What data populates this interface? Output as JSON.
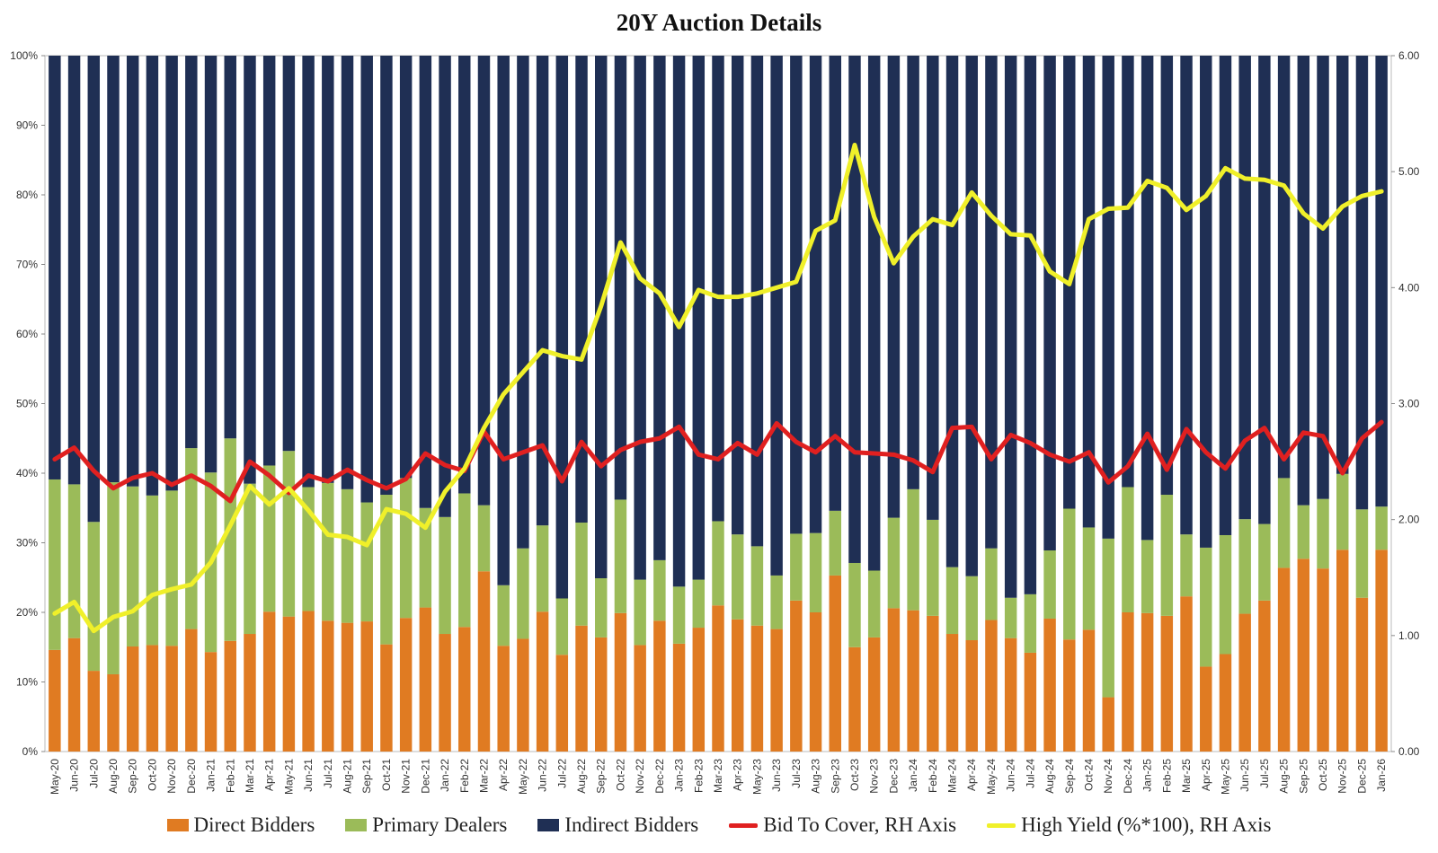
{
  "chart_data": {
    "type": "bar",
    "title": "20Y Auction Details",
    "stacked": true,
    "categories": [
      "May-20",
      "Jun-20",
      "Jul-20",
      "Aug-20",
      "Sep-20",
      "Oct-20",
      "Nov-20",
      "Dec-20",
      "Jan-21",
      "Feb-21",
      "Mar-21",
      "Apr-21",
      "May-21",
      "Jun-21",
      "Jul-21",
      "Aug-21",
      "Sep-21",
      "Oct-21",
      "Nov-21",
      "Dec-21",
      "Jan-22",
      "Feb-22",
      "Mar-22",
      "Apr-22",
      "May-22",
      "Jun-22",
      "Jul-22",
      "Aug-22",
      "Sep-22",
      "Oct-22",
      "Nov-22",
      "Dec-22",
      "Jan-23",
      "Feb-23",
      "Mar-23",
      "Apr-23",
      "May-23",
      "Jun-23",
      "Jul-23",
      "Aug-23",
      "Sep-23",
      "Oct-23",
      "Nov-23",
      "Dec-23",
      "Jan-24",
      "Feb-24",
      "Mar-24",
      "Apr-24",
      "May-24",
      "Jun-24",
      "Jul-24",
      "Aug-24",
      "Sep-24",
      "Oct-24",
      "Nov-24",
      "Dec-24",
      "Jan-25",
      "Feb-25",
      "Mar-25",
      "Apr-25",
      "May-25",
      "Jun-25",
      "Jul-25",
      "Aug-25",
      "Sep-25",
      "Oct-25",
      "Nov-25",
      "Dec-25",
      "Jan-26"
    ],
    "y_left": {
      "ylim": [
        0,
        100
      ],
      "ticks": [
        "0%",
        "10%",
        "20%",
        "30%",
        "40%",
        "50%",
        "60%",
        "70%",
        "80%",
        "90%",
        "100%"
      ]
    },
    "y_right": {
      "ylim": [
        0,
        6
      ],
      "ticks": [
        "0.00",
        "1.00",
        "2.00",
        "3.00",
        "4.00",
        "5.00",
        "6.00"
      ]
    },
    "series": [
      {
        "name": "Direct Bidders",
        "kind": "bar",
        "axis": "left",
        "color": "#e07b22",
        "values": [
          14.6,
          16.3,
          11.6,
          11.1,
          15.1,
          15.3,
          15.2,
          17.6,
          14.3,
          15.9,
          16.9,
          20.1,
          19.4,
          20.2,
          18.8,
          18.5,
          18.7,
          15.4,
          19.2,
          20.7,
          16.9,
          17.9,
          25.9,
          15.2,
          16.2,
          20.1,
          13.9,
          18.1,
          16.4,
          19.9,
          15.3,
          18.8,
          15.5,
          17.8,
          21.0,
          19.0,
          18.1,
          17.6,
          21.7,
          20.0,
          25.3,
          15.0,
          16.4,
          20.6,
          20.3,
          19.5,
          16.9,
          16.0,
          18.9,
          16.3,
          14.2,
          19.1,
          16.1,
          17.5,
          7.8,
          20.0,
          19.9,
          19.5,
          22.3,
          12.2,
          14.0,
          19.8,
          21.7,
          26.4,
          27.7,
          26.3,
          29.0,
          22.1,
          29.0
        ]
      },
      {
        "name": "Primary Dealers",
        "kind": "bar",
        "axis": "left",
        "color": "#9bbb59",
        "values": [
          24.5,
          22.1,
          21.4,
          27.6,
          23.0,
          21.5,
          22.3,
          26.0,
          25.8,
          29.1,
          21.6,
          21.0,
          23.8,
          17.8,
          19.8,
          19.2,
          17.1,
          21.5,
          20.1,
          14.3,
          16.8,
          19.2,
          9.5,
          8.7,
          13.0,
          12.4,
          8.1,
          14.8,
          8.5,
          16.3,
          9.4,
          8.7,
          8.2,
          6.9,
          12.1,
          12.2,
          11.4,
          7.7,
          9.6,
          11.4,
          9.3,
          12.1,
          9.6,
          13.0,
          17.4,
          13.8,
          9.6,
          9.2,
          10.3,
          5.8,
          8.4,
          9.8,
          18.8,
          14.7,
          22.8,
          18.0,
          10.5,
          17.4,
          8.9,
          17.1,
          17.1,
          13.6,
          11.0,
          12.9,
          7.7,
          10.0,
          10.9,
          12.7,
          6.2
        ]
      },
      {
        "name": "Indirect Bidders",
        "kind": "bar",
        "axis": "left",
        "color": "#1f2f54",
        "values": [
          60.9,
          61.6,
          67.0,
          61.3,
          61.9,
          63.2,
          62.5,
          56.4,
          59.9,
          55.0,
          61.5,
          58.9,
          56.8,
          62.0,
          61.4,
          62.3,
          64.2,
          63.1,
          60.7,
          65.0,
          66.3,
          62.9,
          64.6,
          76.1,
          70.8,
          67.5,
          78.0,
          67.1,
          75.1,
          63.8,
          75.3,
          72.5,
          76.3,
          75.3,
          66.9,
          68.8,
          70.5,
          74.7,
          68.7,
          68.6,
          65.4,
          72.9,
          74.0,
          66.4,
          62.3,
          66.7,
          73.5,
          74.8,
          70.8,
          77.9,
          77.4,
          71.1,
          65.1,
          67.8,
          69.4,
          62.0,
          69.6,
          63.1,
          68.8,
          70.7,
          68.9,
          66.6,
          67.3,
          60.7,
          64.6,
          63.7,
          60.1,
          65.2,
          64.8
        ]
      },
      {
        "name": "Bid To Cover, RH Axis",
        "kind": "line",
        "axis": "right",
        "color": "#e02020",
        "values": [
          2.52,
          2.62,
          2.42,
          2.27,
          2.36,
          2.4,
          2.3,
          2.38,
          2.29,
          2.16,
          2.5,
          2.38,
          2.23,
          2.38,
          2.33,
          2.43,
          2.34,
          2.27,
          2.35,
          2.57,
          2.47,
          2.42,
          2.76,
          2.52,
          2.58,
          2.64,
          2.33,
          2.67,
          2.46,
          2.6,
          2.67,
          2.7,
          2.8,
          2.56,
          2.52,
          2.66,
          2.56,
          2.83,
          2.67,
          2.58,
          2.72,
          2.58,
          2.57,
          2.56,
          2.51,
          2.41,
          2.79,
          2.8,
          2.52,
          2.73,
          2.66,
          2.56,
          2.5,
          2.58,
          2.32,
          2.46,
          2.74,
          2.43,
          2.78,
          2.58,
          2.44,
          2.68,
          2.79,
          2.52,
          2.75,
          2.72,
          2.4,
          2.7,
          2.84
        ]
      },
      {
        "name": "High Yield (%*100), RH Axis",
        "kind": "line",
        "axis": "right",
        "color": "#f0f02a",
        "values": [
          1.19,
          1.29,
          1.04,
          1.16,
          1.21,
          1.35,
          1.4,
          1.44,
          1.63,
          1.95,
          2.29,
          2.13,
          2.27,
          2.08,
          1.87,
          1.85,
          1.78,
          2.09,
          2.05,
          1.93,
          2.24,
          2.44,
          2.79,
          3.08,
          3.27,
          3.46,
          3.41,
          3.38,
          3.84,
          4.39,
          4.08,
          3.95,
          3.66,
          3.98,
          3.92,
          3.92,
          3.95,
          4.0,
          4.05,
          4.49,
          4.58,
          5.23,
          4.61,
          4.21,
          4.44,
          4.59,
          4.54,
          4.82,
          4.62,
          4.46,
          4.45,
          4.14,
          4.03,
          4.59,
          4.68,
          4.69,
          4.92,
          4.86,
          4.67,
          4.79,
          5.03,
          4.94,
          4.93,
          4.88,
          4.64,
          4.51,
          4.7,
          4.79,
          4.83
        ]
      }
    ],
    "legend": {
      "placement": "bottom"
    },
    "grid": false
  }
}
